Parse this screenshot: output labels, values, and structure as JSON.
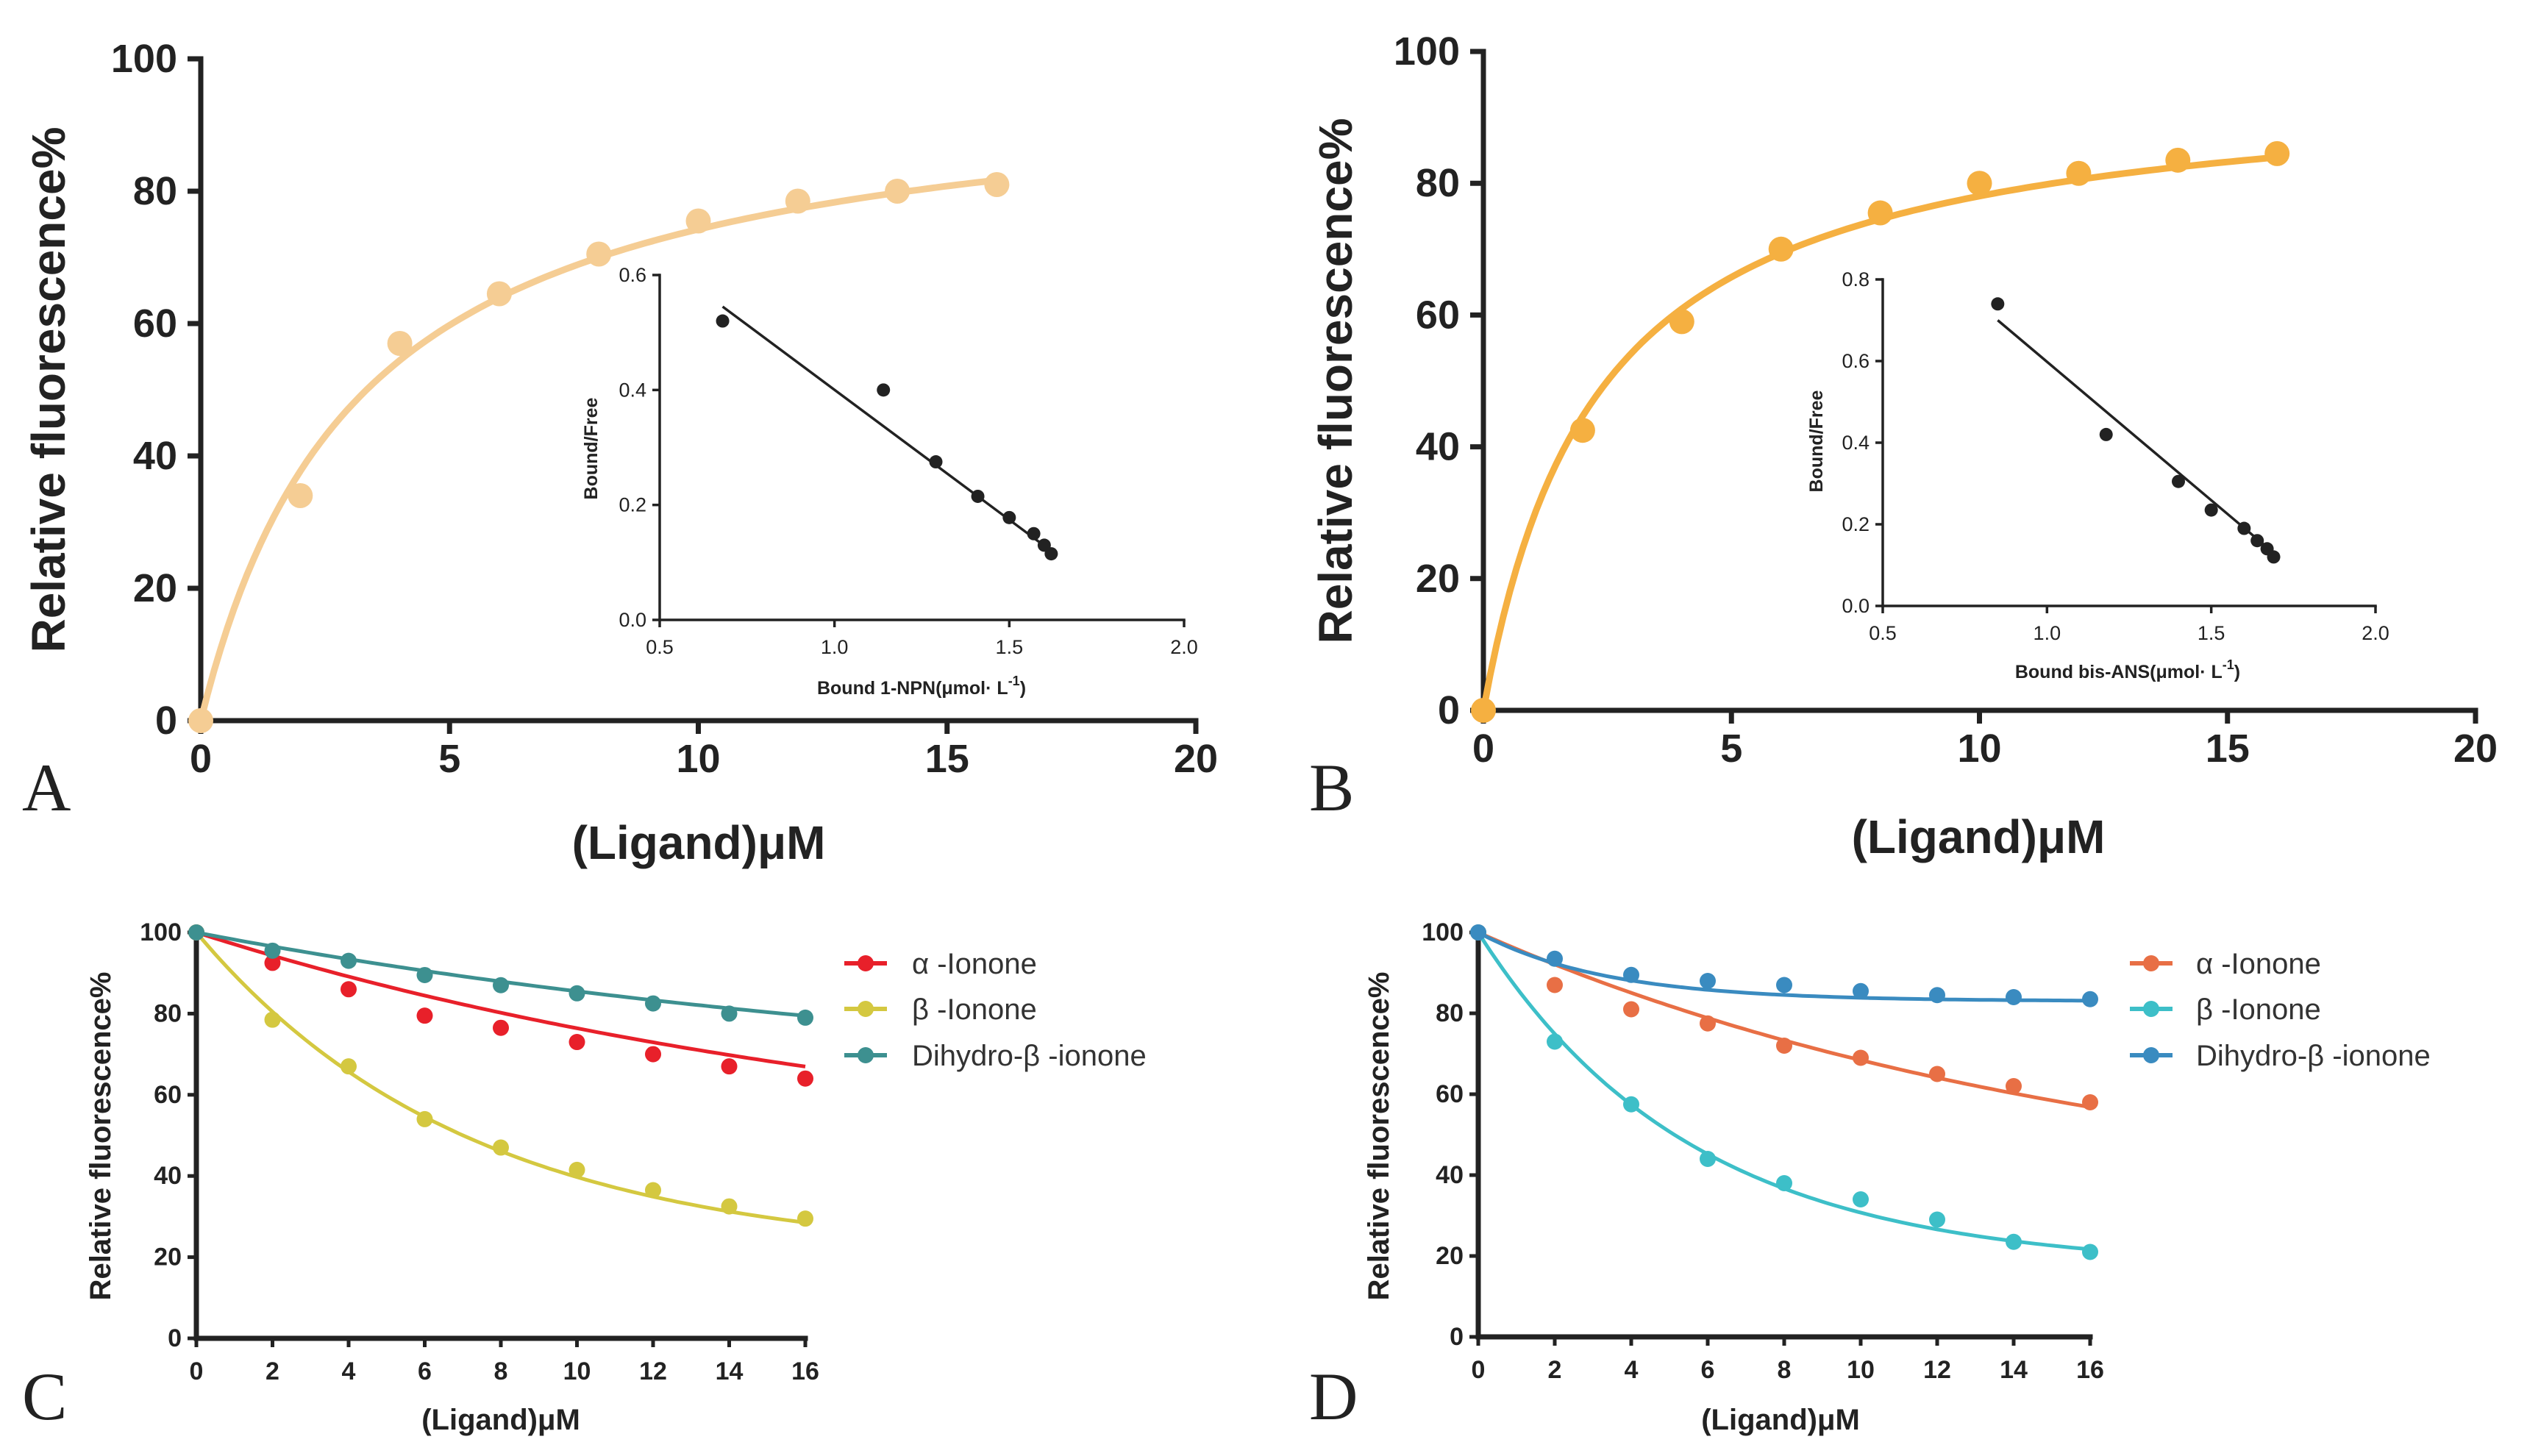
{
  "chart_data": [
    {
      "panel": "A",
      "type": "scatter",
      "color": "#F5CD94",
      "x": [
        0,
        2,
        4,
        6,
        8,
        10,
        12,
        14,
        16
      ],
      "y": [
        0,
        34,
        57,
        64.5,
        70.5,
        75.5,
        78.5,
        80,
        81
      ],
      "fit": {
        "model": "saturation",
        "bmax": 98,
        "kd": 3.2
      },
      "xlabel": "(Ligand)μM",
      "ylabel": "Relative  fluorescence%",
      "xlim": [
        0,
        20
      ],
      "ylim": [
        0,
        100
      ],
      "xticks": [
        "0",
        "5",
        "10",
        "15",
        "20"
      ],
      "yticks": [
        "0",
        "20",
        "40",
        "60",
        "80",
        "100"
      ],
      "inset": {
        "type": "scatter",
        "color": "#222222",
        "x": [
          0.68,
          1.14,
          1.29,
          1.41,
          1.5,
          1.57,
          1.6,
          1.62
        ],
        "y": [
          0.52,
          0.4,
          0.275,
          0.215,
          0.178,
          0.15,
          0.13,
          0.115
        ],
        "fit": {
          "x0": 0.68,
          "y0": 0.545,
          "x1": 1.62,
          "y1": 0.12
        },
        "xlabel": "Bound 1-NPN(μmol· L",
        "xlabel_sup": "-1",
        "xlabel_end": ")",
        "ylabel": "Bound/Free",
        "xlim": [
          0.5,
          2.0
        ],
        "ylim": [
          0,
          0.6
        ],
        "xticks": [
          "0.5",
          "1.0",
          "1.5",
          "2.0"
        ],
        "yticks": [
          "0.0",
          "0.2",
          "0.4",
          "0.6"
        ]
      }
    },
    {
      "panel": "B",
      "type": "scatter",
      "color": "#F5B041",
      "x": [
        0,
        2,
        4,
        6,
        8,
        10,
        12,
        14,
        16
      ],
      "y": [
        0,
        42.5,
        59,
        70,
        75.5,
        80,
        81.5,
        83.5,
        84.5
      ],
      "fit": {
        "model": "saturation",
        "bmax": 96,
        "kd": 2.3
      },
      "xlabel": "(Ligand)μM",
      "ylabel": "Relative  fluorescence%",
      "xlim": [
        0,
        20
      ],
      "ylim": [
        0,
        100
      ],
      "xticks": [
        "0",
        "5",
        "10",
        "15",
        "20"
      ],
      "yticks": [
        "0",
        "20",
        "40",
        "60",
        "80",
        "100"
      ],
      "inset": {
        "type": "scatter",
        "color": "#222222",
        "x": [
          0.85,
          1.18,
          1.4,
          1.5,
          1.6,
          1.64,
          1.67,
          1.69
        ],
        "y": [
          0.74,
          0.42,
          0.305,
          0.235,
          0.19,
          0.16,
          0.14,
          0.12
        ],
        "fit": {
          "x0": 0.85,
          "y0": 0.7,
          "x1": 1.69,
          "y1": 0.13
        },
        "xlabel": "Bound bis-ANS(μmol· L",
        "xlabel_sup": "-1",
        "xlabel_end": ")",
        "ylabel": "Bound/Free",
        "xlim": [
          0.5,
          2.0
        ],
        "ylim": [
          0,
          0.8
        ],
        "xticks": [
          "0.5",
          "1.0",
          "1.5",
          "2.0"
        ],
        "yticks": [
          "0.0",
          "0.2",
          "0.4",
          "0.6",
          "0.8"
        ]
      }
    },
    {
      "panel": "C",
      "type": "line",
      "x": [
        0,
        2,
        4,
        6,
        8,
        10,
        12,
        14,
        16
      ],
      "series": [
        {
          "name": "α -Ionone",
          "color": "#E8202A",
          "values": [
            100,
            92.5,
            86,
            79.5,
            76.5,
            73,
            70,
            67,
            64
          ],
          "fit": {
            "plateau": 40,
            "k": 0.05
          }
        },
        {
          "name": "β -Ionone",
          "color": "#D4C840",
          "values": [
            100,
            78.5,
            67,
            54,
            47,
            41.5,
            36.5,
            32.5,
            29.5
          ],
          "fit": {
            "plateau": 20,
            "k": 0.14
          }
        },
        {
          "name": "Dihydro-β -ionone",
          "color": "#3D9090",
          "values": [
            100,
            95.5,
            93,
            89.5,
            87,
            85,
            82.5,
            80,
            79
          ],
          "fit": {
            "plateau": 60,
            "k": 0.045
          }
        }
      ],
      "xlabel": "(Ligand)μM",
      "ylabel": "Relative  fluorescence%",
      "xlim": [
        0,
        16
      ],
      "ylim": [
        0,
        100
      ],
      "xticks": [
        "0",
        "2",
        "4",
        "6",
        "8",
        "10",
        "12",
        "14",
        "16"
      ],
      "yticks": [
        "0",
        "20",
        "40",
        "60",
        "80",
        "100"
      ]
    },
    {
      "panel": "D",
      "type": "line",
      "x": [
        0,
        2,
        4,
        6,
        8,
        10,
        12,
        14,
        16
      ],
      "series": [
        {
          "name": "α -Ionone",
          "color": "#E86F45",
          "values": [
            100,
            87,
            81,
            77.5,
            72,
            69,
            65,
            62,
            58
          ],
          "fit": {
            "plateau": 30,
            "k": 0.06
          }
        },
        {
          "name": "β -Ionone",
          "color": "#3DBFC8",
          "values": [
            100,
            73,
            57.5,
            44,
            38,
            34,
            29,
            23.5,
            21
          ],
          "fit": {
            "plateau": 17,
            "k": 0.18
          }
        },
        {
          "name": "Dihydro-β -ionone",
          "color": "#3A8BC0",
          "values": [
            100,
            93.5,
            89.5,
            88,
            87,
            85.5,
            84.5,
            84,
            83.5
          ],
          "fit": {
            "plateau": 83,
            "k": 0.3
          }
        }
      ],
      "xlabel": "(Ligand)μM",
      "ylabel": "Relative  fluorescence%",
      "xlim": [
        0,
        16
      ],
      "ylim": [
        0,
        100
      ],
      "xticks": [
        "0",
        "2",
        "4",
        "6",
        "8",
        "10",
        "12",
        "14",
        "16"
      ],
      "yticks": [
        "0",
        "20",
        "40",
        "60",
        "80",
        "100"
      ]
    }
  ]
}
